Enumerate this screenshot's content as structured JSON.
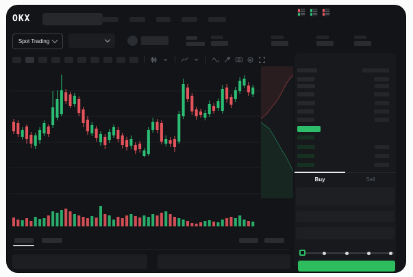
{
  "app": {
    "title": "OKX Spot Trading"
  },
  "colors": {
    "up": "#2cbd74",
    "down": "#e5545c",
    "accent": "#2ebd5e",
    "last_price_bar": "#2ebd68",
    "grid": "#1e2024",
    "depth_ask_fill": "rgba(229,84,92,0.09)",
    "depth_bid_fill": "rgba(44,189,116,0.09)",
    "depth_ask_line": "rgba(229,84,92,0.55)",
    "depth_bid_line": "rgba(44,189,116,0.55)"
  },
  "topbar": {
    "logo": "OKX",
    "nav_placeholder_widths": [
      26,
      23,
      21,
      23,
      26
    ]
  },
  "subbar": {
    "market_selector_label": "Spot Trading",
    "ticker_stat_lefts": [
      298,
      386,
      452,
      507
    ]
  },
  "chart_toolbar": {
    "timeframe_placeholder_count": 10,
    "icon_names": [
      "candle-style-icon",
      "chevron-down-icon",
      "indicator-icon",
      "chevron-down-icon",
      "wave-icon",
      "draw-tool-icon",
      "camera-icon",
      "settings-icon",
      "fullscreen-icon"
    ]
  },
  "order_book": {
    "mode_icon_names": [
      "book-both-icon",
      "book-bids-icon",
      "book-asks-icon"
    ],
    "header_rows": [
      {
        "left_w": 29,
        "right_w": 39
      },
      {
        "left_w": 25,
        "right_w": 22
      }
    ],
    "asks": [
      {
        "price_w": 26,
        "amount_w": 21
      },
      {
        "price_w": 25,
        "amount_w": 22
      },
      {
        "price_w": 26,
        "amount_w": 21
      },
      {
        "price_w": 24,
        "amount_w": 22
      },
      {
        "price_w": 25,
        "amount_w": 21
      }
    ],
    "bids": [
      {
        "price_w": 25,
        "amount_w": 0
      },
      {
        "price_w": 26,
        "amount_w": 21
      },
      {
        "price_w": 25,
        "amount_w": 21
      },
      {
        "price_w": 25,
        "amount_w": 22
      }
    ]
  },
  "trade_panel": {
    "buy_tab_label": "Buy",
    "sell_tab_label": "Sell",
    "slider_positions": 5,
    "slider_selected_index": 0
  },
  "chart_data": {
    "type": "candlestick",
    "title": "",
    "xlabel": "",
    "ylabel": "",
    "value_range": [
      40,
      234
    ],
    "grid_y_values": [
      197,
      160,
      122,
      85,
      47
    ],
    "candles": [
      [
        152,
        156,
        134,
        138
      ],
      [
        150,
        154,
        130,
        134
      ],
      [
        130,
        144,
        126,
        140
      ],
      [
        145,
        148,
        120,
        127
      ],
      [
        133,
        137,
        114,
        120
      ],
      [
        117,
        136,
        112,
        132
      ],
      [
        125,
        144,
        120,
        140
      ],
      [
        135,
        154,
        131,
        150
      ],
      [
        145,
        148,
        130,
        134
      ],
      [
        147,
        197,
        143,
        173
      ],
      [
        158,
        198,
        154,
        185
      ],
      [
        163,
        221,
        160,
        198
      ],
      [
        195,
        200,
        178,
        182
      ],
      [
        192,
        196,
        172,
        175
      ],
      [
        178,
        194,
        174,
        190
      ],
      [
        185,
        189,
        160,
        165
      ],
      [
        170,
        174,
        144,
        150
      ],
      [
        155,
        160,
        133,
        138
      ],
      [
        135,
        152,
        131,
        147
      ],
      [
        142,
        146,
        123,
        128
      ],
      [
        122,
        138,
        117,
        134
      ],
      [
        130,
        134,
        112,
        118
      ],
      [
        125,
        141,
        121,
        137
      ],
      [
        132,
        148,
        128,
        144
      ],
      [
        140,
        144,
        122,
        127
      ],
      [
        132,
        136,
        113,
        118
      ],
      [
        125,
        130,
        110,
        115
      ],
      [
        117,
        132,
        112,
        127
      ],
      [
        118,
        122,
        105,
        110
      ],
      [
        120,
        124,
        107,
        112
      ],
      [
        102,
        114,
        100,
        110
      ],
      [
        105,
        144,
        102,
        140
      ],
      [
        140,
        158,
        136,
        152
      ],
      [
        152,
        156,
        135,
        140
      ],
      [
        150,
        154,
        119,
        123
      ],
      [
        120,
        132,
        116,
        127
      ],
      [
        125,
        130,
        115,
        120
      ],
      [
        127,
        131,
        108,
        115
      ],
      [
        123,
        168,
        119,
        163
      ],
      [
        160,
        215,
        156,
        207
      ],
      [
        202,
        207,
        181,
        185
      ],
      [
        190,
        194,
        162,
        167
      ],
      [
        170,
        174,
        155,
        160
      ],
      [
        167,
        171,
        158,
        162
      ],
      [
        158,
        169,
        154,
        165
      ],
      [
        163,
        183,
        159,
        178
      ],
      [
        175,
        179,
        164,
        168
      ],
      [
        172,
        186,
        168,
        182
      ],
      [
        168,
        206,
        164,
        200
      ],
      [
        202,
        207,
        180,
        185
      ],
      [
        188,
        192,
        172,
        177
      ],
      [
        185,
        203,
        181,
        198
      ],
      [
        197,
        217,
        193,
        212
      ],
      [
        205,
        220,
        201,
        215
      ],
      [
        205,
        210,
        190,
        195
      ],
      [
        192,
        206,
        188,
        202
      ]
    ],
    "volume": [
      13,
      10,
      9,
      12,
      8,
      14,
      11,
      12,
      16,
      22,
      20,
      24,
      26,
      22,
      18,
      16,
      14,
      12,
      15,
      13,
      30,
      18,
      16,
      10,
      14,
      12,
      16,
      18,
      15,
      13,
      16,
      14,
      18,
      16,
      20,
      22,
      18,
      14,
      12,
      10,
      8,
      5,
      4,
      6,
      8,
      9,
      7,
      6,
      10,
      12,
      14,
      12,
      16,
      10,
      8,
      7
    ],
    "depth": {
      "asks_line": [
        [
          0,
          77
        ],
        [
          4,
          73
        ],
        [
          8,
          70
        ],
        [
          11,
          66
        ],
        [
          14,
          62
        ],
        [
          18,
          57
        ],
        [
          22,
          52
        ],
        [
          26,
          46
        ],
        [
          30,
          39
        ],
        [
          34,
          31
        ],
        [
          38,
          24
        ],
        [
          42,
          18
        ],
        [
          47,
          13
        ]
      ],
      "bids_line": [
        [
          0,
          81
        ],
        [
          4,
          85
        ],
        [
          8,
          88
        ],
        [
          12,
          91
        ],
        [
          16,
          97
        ],
        [
          20,
          104
        ],
        [
          24,
          111
        ],
        [
          28,
          118
        ],
        [
          32,
          125
        ],
        [
          36,
          131
        ],
        [
          40,
          139
        ],
        [
          44,
          147
        ],
        [
          47,
          153
        ]
      ]
    }
  }
}
